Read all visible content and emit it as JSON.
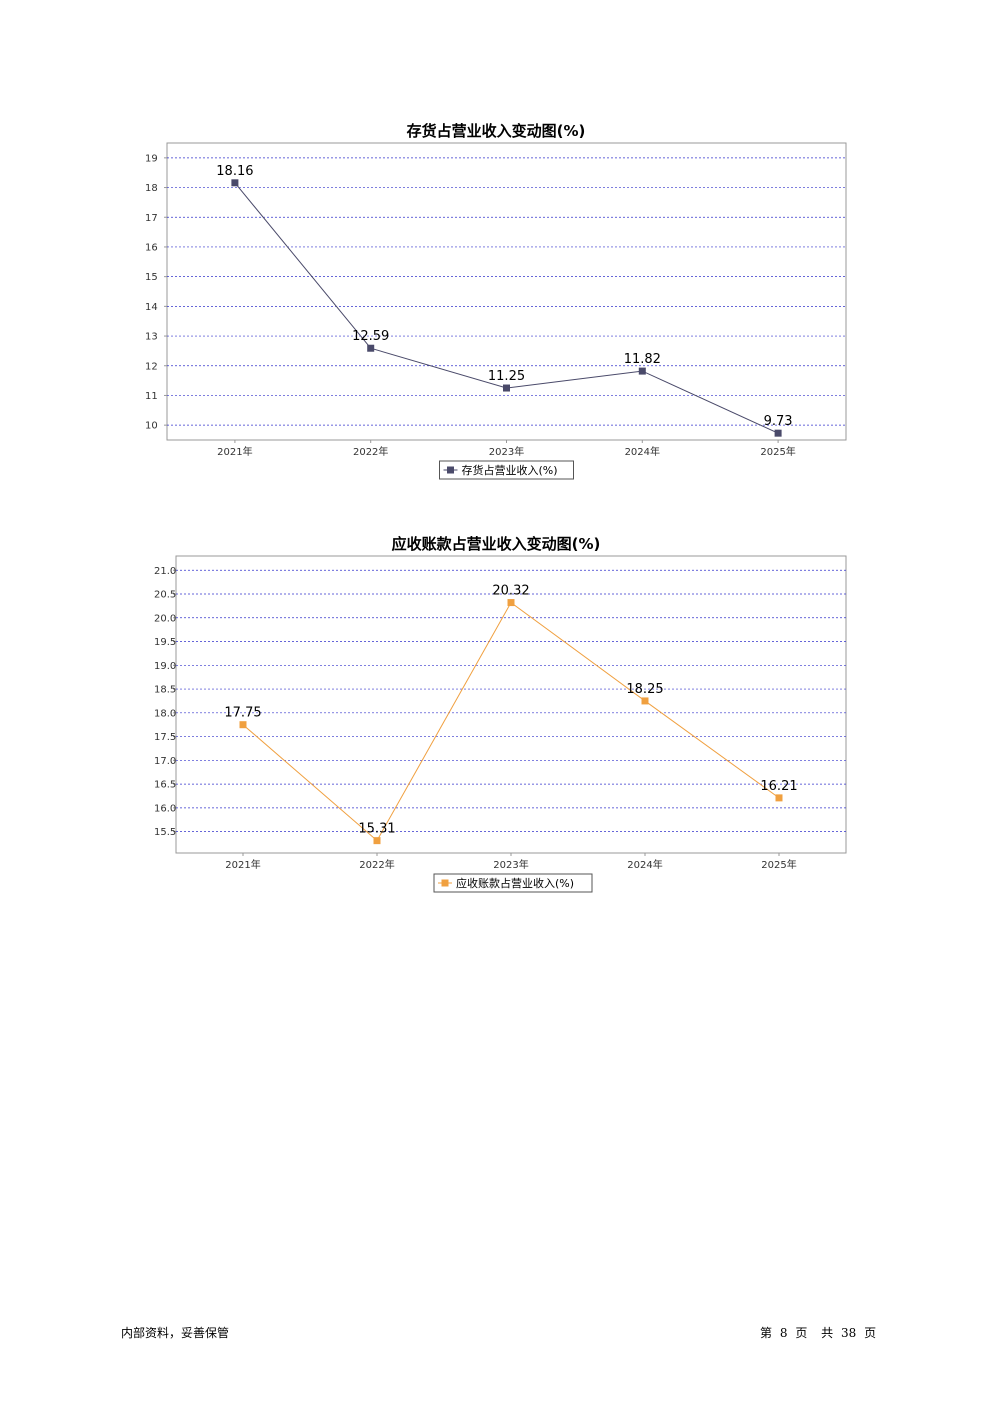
{
  "charts": [
    {
      "title": "存货占营业收入变动图(%)",
      "chart_data": {
        "type": "line",
        "categories": [
          "2021年",
          "2022年",
          "2023年",
          "2024年",
          "2025年"
        ],
        "series": [
          {
            "name": "存货占营业收入(%)",
            "values": [
              18.16,
              12.59,
              11.25,
              11.82,
              9.73
            ]
          }
        ],
        "yticks": [
          "10",
          "11",
          "12",
          "13",
          "14",
          "15",
          "16",
          "17",
          "18",
          "19"
        ],
        "ylim": [
          9.5,
          19.5
        ],
        "grid": true,
        "legend": "bottom-center",
        "color": "#4a4a6a",
        "gridColor": "#3333cc"
      }
    },
    {
      "title": "应收账款占营业收入变动图(%)",
      "chart_data": {
        "type": "line",
        "categories": [
          "2021年",
          "2022年",
          "2023年",
          "2024年",
          "2025年"
        ],
        "series": [
          {
            "name": "应收账款占营业收入(%)",
            "values": [
              17.75,
              15.31,
              20.32,
              18.25,
              16.21
            ]
          }
        ],
        "yticks": [
          "15.5",
          "16.0",
          "16.5",
          "17.0",
          "17.5",
          "18.0",
          "18.5",
          "19.0",
          "19.5",
          "20.0",
          "20.5",
          "21.0"
        ],
        "ylim": [
          15.05,
          21.3
        ],
        "grid": true,
        "legend": "bottom-center",
        "color": "#f0a040",
        "gridColor": "#3333cc"
      }
    }
  ],
  "footer": {
    "left": "内部资料，妥善保管",
    "page_prefix": "第",
    "page_number": "8",
    "page_suffix": "页",
    "total_prefix": "共",
    "total_pages": "38",
    "total_suffix": "页"
  }
}
